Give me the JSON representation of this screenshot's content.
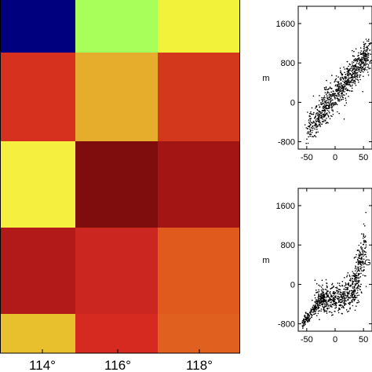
{
  "chart_data": [
    {
      "type": "heatmap",
      "x_tick_labels": [
        "114°",
        "116°",
        "118°"
      ],
      "grid": {
        "cols": 3,
        "rows": 5,
        "colors": [
          [
            "#00007f",
            "#a8ff5a",
            "#f2f23a"
          ],
          [
            "#d6301f",
            "#e6ad2c",
            "#d4381c"
          ],
          [
            "#f5f03f",
            "#7f0d0d",
            "#a31414"
          ],
          [
            "#b21a1a",
            "#cc2620",
            "#e05a1e"
          ],
          [
            "#e8c02e",
            "#d62a20",
            "#e06020"
          ]
        ]
      }
    },
    {
      "type": "scatter",
      "ylabel": "m",
      "xlim": [
        -65,
        65
      ],
      "ylim": [
        -950,
        1950
      ],
      "x_ticks": [
        -50,
        0,
        50
      ],
      "y_ticks": [
        -800,
        0,
        800,
        1600
      ],
      "x_tick_labels": [
        "-50",
        "0",
        "50"
      ],
      "y_tick_labels": [
        "-800",
        "0",
        "800",
        "1600"
      ],
      "trend": {
        "slope": 14,
        "intercept": 150,
        "x_range": [
          -52,
          62
        ]
      }
    },
    {
      "type": "scatter",
      "ylabel": "m",
      "xlabel": "mG",
      "xlim": [
        -65,
        65
      ],
      "ylim": [
        -950,
        1950
      ],
      "x_ticks": [
        -50,
        0,
        50
      ],
      "y_ticks": [
        -800,
        0,
        800,
        1600
      ],
      "x_tick_labels": [
        "-50",
        "0",
        "50"
      ],
      "y_tick_labels": [
        "-800",
        "0",
        "800",
        "1600"
      ],
      "trend": {
        "slope": 9,
        "intercept": 0,
        "x_range": [
          -58,
          62
        ]
      }
    }
  ]
}
